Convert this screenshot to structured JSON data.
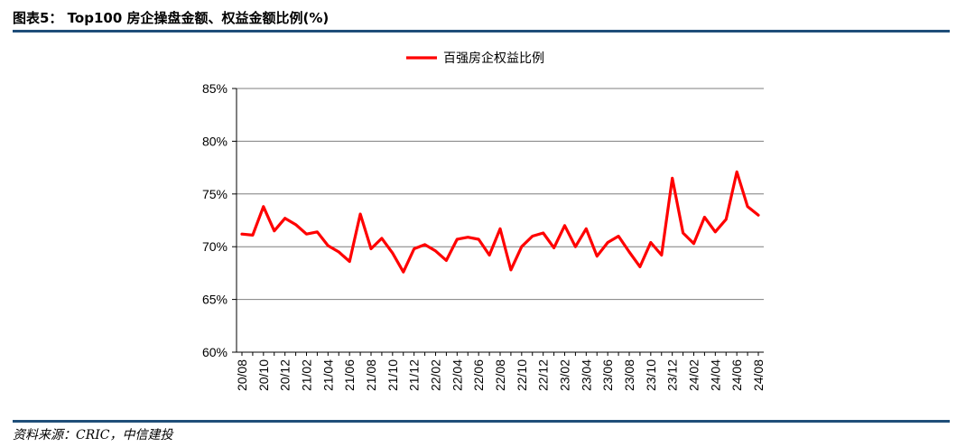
{
  "header": {
    "title": "图表5： Top100 房企操盘金额、权益金额比例(%)"
  },
  "footer": {
    "source": "资料来源：CRIC，中信建投"
  },
  "chart_data": {
    "type": "line",
    "title": "",
    "xlabel": "",
    "ylabel": "",
    "ylim": [
      60,
      85
    ],
    "yticks": [
      "60%",
      "65%",
      "70%",
      "75%",
      "80%",
      "85%"
    ],
    "ytick_values": [
      60,
      65,
      70,
      75,
      80,
      85
    ],
    "grid": true,
    "legend_position": "top-center",
    "x_tick_labels": [
      "20/08",
      "20/10",
      "20/12",
      "21/02",
      "21/04",
      "21/06",
      "21/08",
      "21/10",
      "21/12",
      "22/02",
      "22/04",
      "22/06",
      "22/08",
      "22/10",
      "22/12",
      "23/02",
      "23/04",
      "23/06",
      "23/08",
      "23/10",
      "23/12",
      "24/02",
      "24/04",
      "24/06",
      "24/08"
    ],
    "x": [
      "20/08",
      "20/09",
      "20/10",
      "20/11",
      "20/12",
      "21/01",
      "21/02",
      "21/03",
      "21/04",
      "21/05",
      "21/06",
      "21/07",
      "21/08",
      "21/09",
      "21/10",
      "21/11",
      "21/12",
      "22/01",
      "22/02",
      "22/03",
      "22/04",
      "22/05",
      "22/06",
      "22/07",
      "22/08",
      "22/09",
      "22/10",
      "22/11",
      "22/12",
      "23/01",
      "23/02",
      "23/03",
      "23/04",
      "23/05",
      "23/06",
      "23/07",
      "23/08",
      "23/09",
      "23/10",
      "23/11",
      "23/12",
      "24/01",
      "24/02",
      "24/03",
      "24/04",
      "24/05",
      "24/06",
      "24/07",
      "24/08"
    ],
    "series": [
      {
        "name": "百强房企权益比例",
        "color": "#ff0000",
        "values": [
          71.2,
          71.1,
          73.8,
          71.5,
          72.7,
          72.1,
          71.2,
          71.4,
          70.1,
          69.5,
          68.6,
          73.1,
          69.8,
          70.8,
          69.4,
          67.6,
          69.8,
          70.2,
          69.6,
          68.7,
          70.7,
          70.9,
          70.7,
          69.2,
          71.7,
          67.8,
          70.0,
          71.0,
          71.3,
          69.9,
          72.0,
          70.0,
          71.7,
          69.1,
          70.4,
          71.0,
          69.5,
          68.1,
          70.4,
          69.2,
          76.5,
          71.3,
          70.3,
          72.8,
          71.4,
          72.6,
          77.1,
          73.8,
          73.0
        ]
      }
    ]
  }
}
